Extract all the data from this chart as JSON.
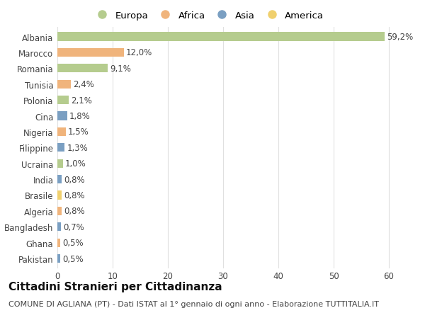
{
  "countries": [
    "Albania",
    "Marocco",
    "Romania",
    "Tunisia",
    "Polonia",
    "Cina",
    "Nigeria",
    "Filippine",
    "Ucraina",
    "India",
    "Brasile",
    "Algeria",
    "Bangladesh",
    "Ghana",
    "Pakistan"
  ],
  "values": [
    59.2,
    12.0,
    9.1,
    2.4,
    2.1,
    1.8,
    1.5,
    1.3,
    1.0,
    0.8,
    0.8,
    0.8,
    0.7,
    0.5,
    0.5
  ],
  "labels": [
    "59,2%",
    "12,0%",
    "9,1%",
    "2,4%",
    "2,1%",
    "1,8%",
    "1,5%",
    "1,3%",
    "1,0%",
    "0,8%",
    "0,8%",
    "0,8%",
    "0,7%",
    "0,5%",
    "0,5%"
  ],
  "continents": [
    "Europa",
    "Africa",
    "Europa",
    "Africa",
    "Europa",
    "Asia",
    "Africa",
    "Asia",
    "Europa",
    "Asia",
    "America",
    "Africa",
    "Asia",
    "Africa",
    "Asia"
  ],
  "colors": {
    "Europa": "#b5cc8e",
    "Africa": "#f0b47c",
    "Asia": "#7a9fc2",
    "America": "#f0d06e"
  },
  "legend_order": [
    "Europa",
    "Africa",
    "Asia",
    "America"
  ],
  "xlim": [
    0,
    65
  ],
  "xticks": [
    0,
    10,
    20,
    30,
    40,
    50,
    60
  ],
  "background_color": "#ffffff",
  "grid_color": "#e0e0e0",
  "title": "Cittadini Stranieri per Cittadinanza",
  "subtitle": "COMUNE DI AGLIANA (PT) - Dati ISTAT al 1° gennaio di ogni anno - Elaborazione TUTTITALIA.IT",
  "bar_height": 0.55,
  "label_fontsize": 8.5,
  "tick_fontsize": 8.5,
  "title_fontsize": 11,
  "subtitle_fontsize": 8
}
